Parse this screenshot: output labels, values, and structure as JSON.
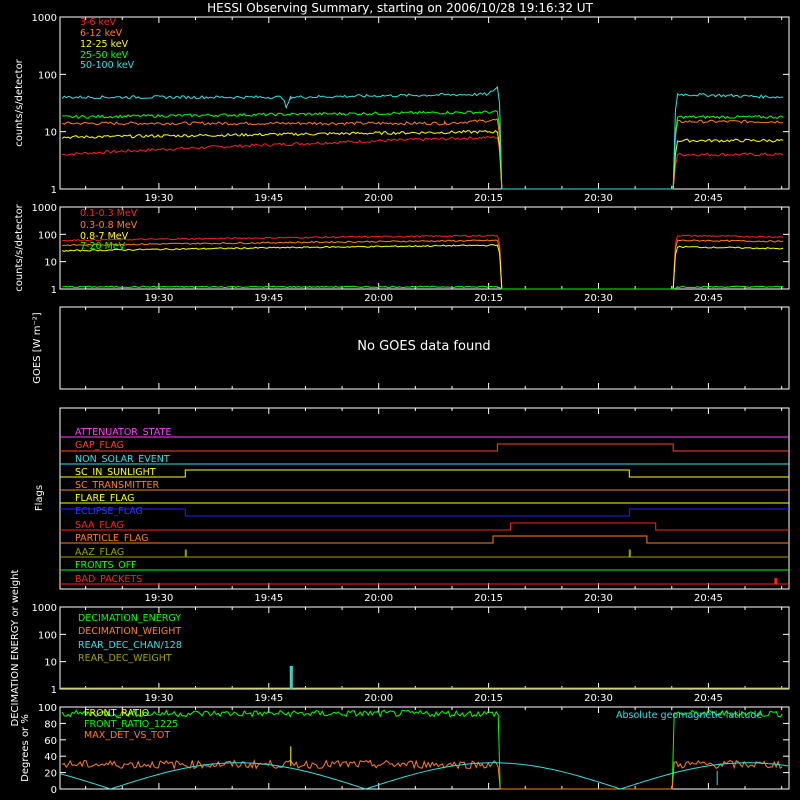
{
  "title": "HESSI Observing Summary, starting on 2006/10/28 19:16:32 UT",
  "colors": {
    "red": "#ff2020",
    "orange": "#ff7f1a",
    "yellow": "#ffff00",
    "green": "#00ff00",
    "cyan": "#33e0e0",
    "magenta": "#ff40ff",
    "blue": "#0000ff",
    "olive": "#a0a000",
    "brick": "#ff4020",
    "white": "#ffffff"
  },
  "chart_data": [
    {
      "id": "panel1",
      "type": "line",
      "ylabel": "counts/s/detector",
      "yscale": "log",
      "ylim": [
        1,
        1000
      ],
      "yticks": [
        "1",
        "10",
        "100",
        "1000"
      ],
      "xlim": [
        "19:16:32",
        "20:56:00"
      ],
      "xticks": [
        "19:30",
        "19:45",
        "20:00",
        "20:15",
        "20:30",
        "20:45"
      ],
      "legend_position": "top-left",
      "series": [
        {
          "name": "3-6 keV",
          "color": "red",
          "values": [
            [
              19.28,
              4
            ],
            [
              20.27,
              8
            ],
            [
              20.28,
              1
            ],
            [
              20.67,
              1
            ],
            [
              20.68,
              4
            ],
            [
              20.92,
              4
            ]
          ]
        },
        {
          "name": "6-12 keV",
          "color": "orange",
          "values": [
            [
              19.28,
              14
            ],
            [
              20.15,
              14
            ],
            [
              20.27,
              16
            ],
            [
              20.28,
              1
            ],
            [
              20.67,
              1
            ],
            [
              20.68,
              15
            ],
            [
              20.92,
              15
            ]
          ]
        },
        {
          "name": "12-25 keV",
          "color": "yellow",
          "values": [
            [
              19.28,
              8
            ],
            [
              20.27,
              10
            ],
            [
              20.28,
              1
            ],
            [
              20.67,
              1
            ],
            [
              20.68,
              7
            ],
            [
              20.92,
              7
            ]
          ]
        },
        {
          "name": "25-50 keV",
          "color": "green",
          "values": [
            [
              19.28,
              18
            ],
            [
              20.27,
              22
            ],
            [
              20.28,
              1
            ],
            [
              20.67,
              1
            ],
            [
              20.68,
              18
            ],
            [
              20.92,
              18
            ]
          ]
        },
        {
          "name": "50-100 keV",
          "color": "cyan",
          "values": [
            [
              19.28,
              40
            ],
            [
              19.78,
              40
            ],
            [
              19.79,
              26
            ],
            [
              19.8,
              40
            ],
            [
              20.25,
              45
            ],
            [
              20.27,
              60
            ],
            [
              20.28,
              1
            ],
            [
              20.67,
              1
            ],
            [
              20.68,
              45
            ],
            [
              20.92,
              40
            ]
          ]
        }
      ]
    },
    {
      "id": "panel2",
      "type": "line",
      "ylabel": "counts/s/detector",
      "yscale": "log",
      "ylim": [
        1,
        1000
      ],
      "yticks": [
        "1",
        "10",
        "100",
        "1000"
      ],
      "xlim": [
        "19:16:32",
        "20:56:00"
      ],
      "xticks": [
        "19:30",
        "19:45",
        "20:00",
        "20:15",
        "20:30",
        "20:45"
      ],
      "legend_position": "top-left",
      "series": [
        {
          "name": "0.1-0.3 MeV",
          "color": "red",
          "values": [
            [
              19.28,
              60
            ],
            [
              20.27,
              90
            ],
            [
              20.28,
              1
            ],
            [
              20.67,
              1
            ],
            [
              20.68,
              90
            ],
            [
              20.92,
              80
            ]
          ]
        },
        {
          "name": "0.3-0.8 MeV",
          "color": "orange",
          "values": [
            [
              19.28,
              40
            ],
            [
              20.27,
              60
            ],
            [
              20.28,
              1
            ],
            [
              20.67,
              1
            ],
            [
              20.68,
              60
            ],
            [
              20.92,
              55
            ]
          ]
        },
        {
          "name": "0.8-7 MeV",
          "color": "yellow",
          "values": [
            [
              19.28,
              25
            ],
            [
              20.27,
              40
            ],
            [
              20.28,
              1
            ],
            [
              20.67,
              1
            ],
            [
              20.68,
              35
            ],
            [
              20.92,
              30
            ]
          ]
        },
        {
          "name": "7-20 MeV",
          "color": "green",
          "values": [
            [
              19.28,
              1.2
            ],
            [
              20.27,
              1.2
            ],
            [
              20.28,
              1
            ],
            [
              20.67,
              1
            ],
            [
              20.68,
              1.2
            ],
            [
              20.92,
              1.2
            ]
          ]
        }
      ]
    },
    {
      "id": "panel3",
      "type": "line",
      "ylabel": "GOES [W m⁻²]",
      "message": "No GOES data found",
      "xlim": [
        "19:16:32",
        "20:56:00"
      ],
      "xticks": []
    },
    {
      "id": "panel4",
      "type": "line",
      "ylabel": "Flags",
      "xlim": [
        "19:16:32",
        "20:56:00"
      ],
      "xticks": [
        "19:30",
        "19:45",
        "20:00",
        "20:15",
        "20:30",
        "20:45"
      ],
      "series": [
        {
          "name": "ATTENUATOR_STATE",
          "color": "magenta"
        },
        {
          "name": "GAP_FLAG",
          "color": "brick"
        },
        {
          "name": "NON_SOLAR_EVENT",
          "color": "cyan"
        },
        {
          "name": "SC_IN_SUNLIGHT",
          "color": "yellow"
        },
        {
          "name": "SC_TRANSMITTER",
          "color": "orange"
        },
        {
          "name": "FLARE_FLAG",
          "color": "yellow"
        },
        {
          "name": "ECLIPSE_FLAG",
          "color": "blue"
        },
        {
          "name": "SAA_FLAG",
          "color": "red"
        },
        {
          "name": "PARTICLE_FLAG",
          "color": "orange"
        },
        {
          "name": "AAZ_FLAG",
          "color": "olive"
        },
        {
          "name": "FRONTS_OFF",
          "color": "green"
        },
        {
          "name": "BAD_PACKETS",
          "color": "red"
        }
      ]
    },
    {
      "id": "panel5",
      "type": "line",
      "ylabel": "DECIMATION ENERGY or weight",
      "yscale": "log",
      "ylim": [
        1,
        1000
      ],
      "yticks": [
        "1",
        "10",
        "100",
        "1000"
      ],
      "xlim": [
        "19:16:32",
        "20:56:00"
      ],
      "xticks": [
        "19:30",
        "19:45",
        "20:00",
        "20:15",
        "20:30",
        "20:45"
      ],
      "legend_position": "top-left",
      "series": [
        {
          "name": "DECIMATION_ENERGY",
          "color": "green"
        },
        {
          "name": "DECIMATION_WEIGHT",
          "color": "orange"
        },
        {
          "name": "REAR_DEC_CHAN/128",
          "color": "cyan"
        },
        {
          "name": "REAR_DEC_WEIGHT",
          "color": "olive"
        }
      ]
    },
    {
      "id": "panel6",
      "type": "line",
      "ylabel": "Degrees or %",
      "ylim": [
        0,
        100
      ],
      "yticks": [
        "0",
        "20",
        "40",
        "60",
        "80",
        "100"
      ],
      "xlim": [
        "19:16:32",
        "20:56:00"
      ],
      "xticks": [],
      "annotation": "Absolute geomagnetic latitude",
      "series": [
        {
          "name": "FRONT_RATIO",
          "color": "yellow"
        },
        {
          "name": "FRONT_RATIO_1225",
          "color": "green"
        },
        {
          "name": "MAX_DET_VS_TOT",
          "color": "orange"
        }
      ]
    }
  ]
}
